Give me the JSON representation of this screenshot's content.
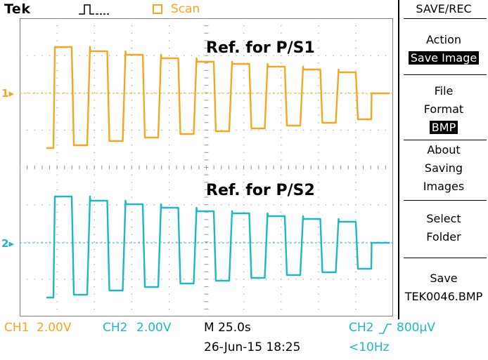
{
  "header": {
    "brand": "Tek",
    "trigger_icon": "pulse-trigger-icon",
    "run_state": "Scan"
  },
  "plot": {
    "ch1_marker": "1",
    "ch2_marker": "2",
    "ref1_label": "Ref. for P/S1",
    "ref2_label": "Ref. for P/S2"
  },
  "menu": {
    "title": "SAVE/REC",
    "action_label": "Action",
    "action_value": "Save Image",
    "file_format_line1": "File",
    "file_format_line2": "Format",
    "file_format_value": "BMP",
    "about_line1": "About",
    "about_line2": "Saving",
    "about_line3": "Images",
    "select_line1": "Select",
    "select_line2": "Folder",
    "save_line1": "Save",
    "save_line2": "TEK0046.BMP"
  },
  "status": {
    "ch1_label": "CH1",
    "ch1_scale": "2.00V",
    "ch2_label": "CH2",
    "ch2_scale": "2.00V",
    "timebase": "M 25.0s",
    "date_time": "26-Jun-15 18:25",
    "trigger_source": "CH2",
    "trigger_slope_icon": "rising-edge-icon",
    "trigger_level": "800μV",
    "frequency": "<10Hz"
  },
  "colors": {
    "ch1": "#f5a623",
    "ch2": "#1fb8c1",
    "grid": "#7f7f7f",
    "dots": "#9a9a9a"
  }
}
